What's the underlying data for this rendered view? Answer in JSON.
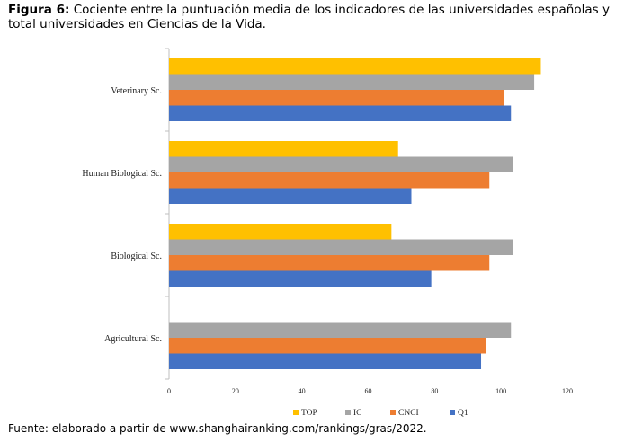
{
  "figure": {
    "label": "Figura 6:",
    "caption": "Cociente entre la puntuación media de los indicadores de las universidades españolas y total universidades en Ciencias de la Vida."
  },
  "source": "Fuente: elaborado a partir de www.shanghairanking.com/rankings/gras/2022.",
  "chart_data": {
    "type": "bar",
    "orientation": "horizontal",
    "categories": [
      "Veterinary Sc.",
      "Human Biological Sc.",
      "Biological Sc.",
      "Agricultural Sc."
    ],
    "series": [
      {
        "name": "TOP",
        "color": "#FFC000",
        "values": [
          112,
          69,
          67,
          0
        ]
      },
      {
        "name": "IC",
        "color": "#A5A5A5",
        "values": [
          110,
          103.5,
          103.5,
          103
        ]
      },
      {
        "name": "CNCI",
        "color": "#ED7D31",
        "values": [
          101,
          96.5,
          96.5,
          95.5
        ]
      },
      {
        "name": "Q1",
        "color": "#4472C4",
        "values": [
          103,
          73,
          79,
          94
        ]
      }
    ],
    "xlim": [
      0,
      120
    ],
    "xticks": [
      0,
      20,
      40,
      60,
      80,
      100,
      120
    ],
    "grid": false,
    "legend": "bottom"
  }
}
